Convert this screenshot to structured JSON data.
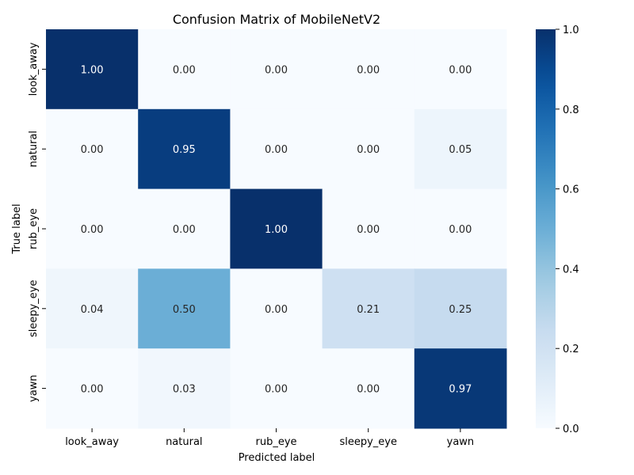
{
  "chart_data": {
    "type": "heatmap",
    "title": "Confusion Matrix of MobileNetV2",
    "xlabel": "Predicted label",
    "ylabel": "True label",
    "x_categories": [
      "look_away",
      "natural",
      "rub_eye",
      "sleepy_eye",
      "yawn"
    ],
    "y_categories": [
      "look_away",
      "natural",
      "rub_eye",
      "sleepy_eye",
      "yawn"
    ],
    "values": [
      [
        1.0,
        0.0,
        0.0,
        0.0,
        0.0
      ],
      [
        0.0,
        0.95,
        0.0,
        0.0,
        0.05
      ],
      [
        0.0,
        0.0,
        1.0,
        0.0,
        0.0
      ],
      [
        0.04,
        0.5,
        0.0,
        0.21,
        0.25
      ],
      [
        0.0,
        0.03,
        0.0,
        0.0,
        0.97
      ]
    ],
    "value_format": "2 decimals",
    "colormap": "Blues",
    "color_range": [
      0.0,
      1.0
    ],
    "colorbar": {
      "ticks": [
        "0.0",
        "0.2",
        "0.4",
        "0.6",
        "0.8",
        "1.0"
      ],
      "tick_values": [
        0.0,
        0.2,
        0.4,
        0.6,
        0.8,
        1.0
      ],
      "placement": "right"
    },
    "grid": false
  }
}
